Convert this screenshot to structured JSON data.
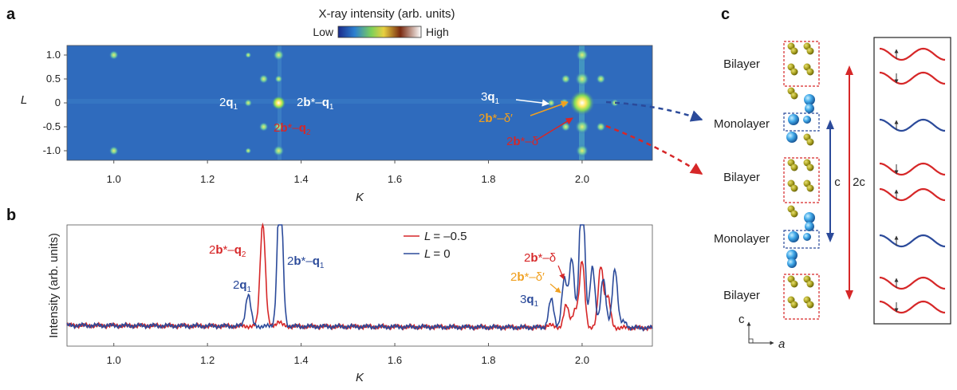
{
  "panels": {
    "a": "a",
    "b": "b",
    "c": "c"
  },
  "colorbar": {
    "title": "X-ray intensity (arb. units)",
    "low": "Low",
    "high": "High"
  },
  "chart_data": [
    {
      "type": "heatmap",
      "panel": "a",
      "xlabel": "K",
      "ylabel": "L",
      "xlim": [
        0.9,
        2.15
      ],
      "ylim": [
        -1.2,
        1.2
      ],
      "xticks": [
        "1.0",
        "1.2",
        "1.4",
        "1.6",
        "1.8",
        "2.0"
      ],
      "yticks": [
        "1.0",
        "0.5",
        "0",
        "-0.5",
        "-1.0"
      ],
      "annotations": {
        "q2": {
          "pre": "2",
          "bold": "q",
          "sub": "1"
        },
        "bq1": {
          "pre": "2",
          "b": "b",
          "mid": "*–",
          "bold": "q",
          "sub": "1"
        },
        "bq2": {
          "pre": "2",
          "b": "b",
          "mid": "*–",
          "bold": "q",
          "sub": "2"
        },
        "q3": {
          "pre": "3",
          "bold": "q",
          "sub": "1"
        },
        "bdp": {
          "pre": "2",
          "b": "b",
          "mid": "*–δ′"
        },
        "bd": {
          "pre": "2",
          "b": "b",
          "mid": "*–δ"
        }
      }
    },
    {
      "type": "line",
      "panel": "b",
      "xlabel": "K",
      "ylabel": "Intensity (arb. units)",
      "xlim": [
        0.9,
        2.15
      ],
      "xticks": [
        "1.0",
        "1.2",
        "1.4",
        "1.6",
        "1.8",
        "2.0"
      ],
      "legend": [
        "L = –0.5",
        "L = 0"
      ],
      "legend_l": "L",
      "legend_vals": [
        "= –0.5",
        "= 0"
      ],
      "series": [
        {
          "name": "L = –0.5",
          "color": "#d62728",
          "peaks": [
            [
              1.318,
              1.05
            ],
            [
              1.352,
              0.05
            ],
            [
              1.966,
              0.22
            ],
            [
              1.985,
              0.18
            ],
            [
              2.0,
              0.66
            ],
            [
              2.04,
              0.62
            ],
            [
              2.055,
              0.3
            ],
            [
              1.93,
              0.03
            ]
          ]
        },
        {
          "name": "L = 0",
          "color": "#2b4a9a",
          "peaks": [
            [
              1.287,
              0.32
            ],
            [
              1.355,
              1.5
            ],
            [
              1.934,
              0.28
            ],
            [
              1.962,
              0.48
            ],
            [
              1.978,
              0.7
            ],
            [
              2.0,
              1.5
            ],
            [
              2.022,
              0.6
            ],
            [
              2.045,
              0.5
            ],
            [
              2.07,
              0.6
            ],
            [
              2.09,
              0.06
            ]
          ]
        }
      ],
      "annotations": {
        "bq2": {
          "pre": "2",
          "b": "b",
          "mid": "*–",
          "bold": "q",
          "sub": "2"
        },
        "q2": {
          "pre": "2",
          "bold": "q",
          "sub": "1"
        },
        "bq1": {
          "pre": "2",
          "b": "b",
          "mid": "*–",
          "bold": "q",
          "sub": "1"
        },
        "bd": {
          "pre": "2",
          "b": "b",
          "mid": "*–δ"
        },
        "bdp": {
          "pre": "2",
          "b": "b",
          "mid": "*–δ′"
        },
        "q3": {
          "pre": "3",
          "bold": "q",
          "sub": "1"
        }
      }
    }
  ],
  "panel_c": {
    "layers": [
      "Bilayer",
      "Monolayer",
      "Bilayer",
      "Monolayer",
      "Bilayer"
    ],
    "c_label": "c",
    "two_c_label": "2c",
    "axis_c": "c",
    "axis_a": "a"
  },
  "colors": {
    "red": "#d62728",
    "blue": "#2b4a9a",
    "orange": "#f0a020",
    "heat_bg": "#2f6bbd"
  }
}
